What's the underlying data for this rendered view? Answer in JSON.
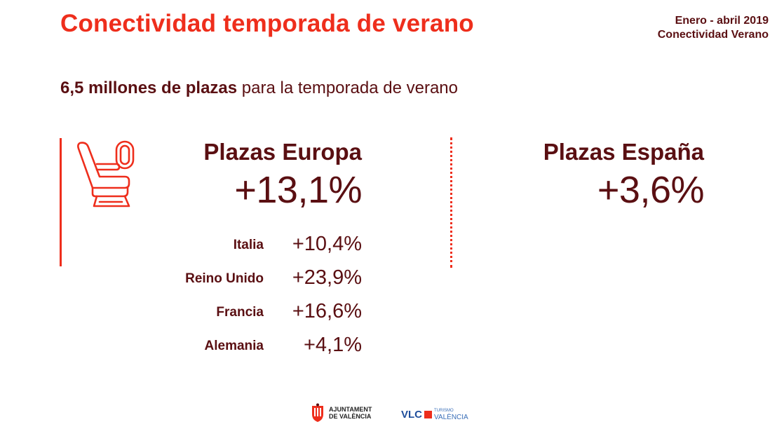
{
  "title": "Conectividad temporada de verano",
  "meta": {
    "line1": "Enero - abril 2019",
    "line2": "Conectividad Verano"
  },
  "subtitle": {
    "strong": "6,5 millones de plazas",
    "rest": " para la temporada de verano"
  },
  "europa": {
    "label": "Plazas Europa",
    "value": "+13,1%",
    "countries": [
      {
        "name": "Italia",
        "value": "+10,4%"
      },
      {
        "name": "Reino Unido",
        "value": "+23,9%"
      },
      {
        "name": "Francia",
        "value": "+16,6%"
      },
      {
        "name": "Alemania",
        "value": "+4,1%"
      }
    ]
  },
  "espana": {
    "label": "Plazas España",
    "value": "+3,6%"
  },
  "logos": {
    "ajuntament": {
      "line1": "AJUNTAMENT",
      "line2": "DE VALÈNCIA"
    },
    "vlc": {
      "mark": "VLC",
      "small": "TURISMO",
      "city": "VALÈNCIA"
    }
  },
  "icons": {
    "seat": "airplane-seat-icon",
    "crest": "city-crest-icon"
  },
  "colors": {
    "accent": "#ee2e1c",
    "text": "#5a0f12",
    "vlc_blue": "#1f4e9c"
  }
}
